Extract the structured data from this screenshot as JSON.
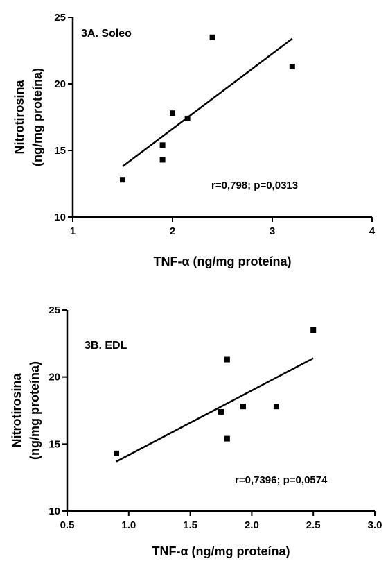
{
  "chart_data": [
    {
      "type": "scatter",
      "title": "3A. Soleo",
      "xlabel": "TNF-α (ng/mg proteína)",
      "ylabel_line1": "Nitrotirosina",
      "ylabel_line2": "(ng/mg proteína)",
      "xlim": [
        1,
        4
      ],
      "ylim": [
        10,
        25
      ],
      "xticks": [
        1,
        2,
        3,
        4
      ],
      "xtick_labels": [
        "1",
        "2",
        "3",
        "4"
      ],
      "yticks": [
        10,
        15,
        20,
        25
      ],
      "ytick_labels": [
        "10",
        "15",
        "20",
        "25"
      ],
      "points": [
        {
          "x": 1.5,
          "y": 12.8
        },
        {
          "x": 1.9,
          "y": 14.3
        },
        {
          "x": 1.9,
          "y": 15.4
        },
        {
          "x": 2.0,
          "y": 17.8
        },
        {
          "x": 2.15,
          "y": 17.4
        },
        {
          "x": 2.4,
          "y": 23.5
        },
        {
          "x": 3.2,
          "y": 21.3
        }
      ],
      "regression": {
        "x": [
          1.5,
          3.2
        ],
        "y": [
          13.8,
          23.4
        ]
      },
      "stats": "r=0,798;  p=0,0313",
      "grid": false,
      "legend": "none"
    },
    {
      "type": "scatter",
      "title": "3B. EDL",
      "xlabel": "TNF-α (ng/mg proteína)",
      "ylabel_line1": "Nitrotirosina",
      "ylabel_line2": "(ng/mg proteína)",
      "xlim": [
        0.5,
        3.0
      ],
      "ylim": [
        10,
        25
      ],
      "xticks": [
        0.5,
        1.0,
        1.5,
        2.0,
        2.5,
        3.0
      ],
      "xtick_labels": [
        "0.5",
        "1.0",
        "1.5",
        "2.0",
        "2.5",
        "3.0"
      ],
      "yticks": [
        10,
        15,
        20,
        25
      ],
      "ytick_labels": [
        "10",
        "15",
        "20",
        "25"
      ],
      "points": [
        {
          "x": 0.9,
          "y": 14.3
        },
        {
          "x": 1.75,
          "y": 17.4
        },
        {
          "x": 1.8,
          "y": 21.3
        },
        {
          "x": 1.8,
          "y": 15.4
        },
        {
          "x": 1.93,
          "y": 17.8
        },
        {
          "x": 2.2,
          "y": 17.8
        },
        {
          "x": 2.5,
          "y": 23.5
        }
      ],
      "regression": {
        "x": [
          0.9,
          2.5
        ],
        "y": [
          13.7,
          21.4
        ]
      },
      "stats": "r=0,7396;  p=0,0574",
      "grid": false,
      "legend": "none"
    }
  ]
}
